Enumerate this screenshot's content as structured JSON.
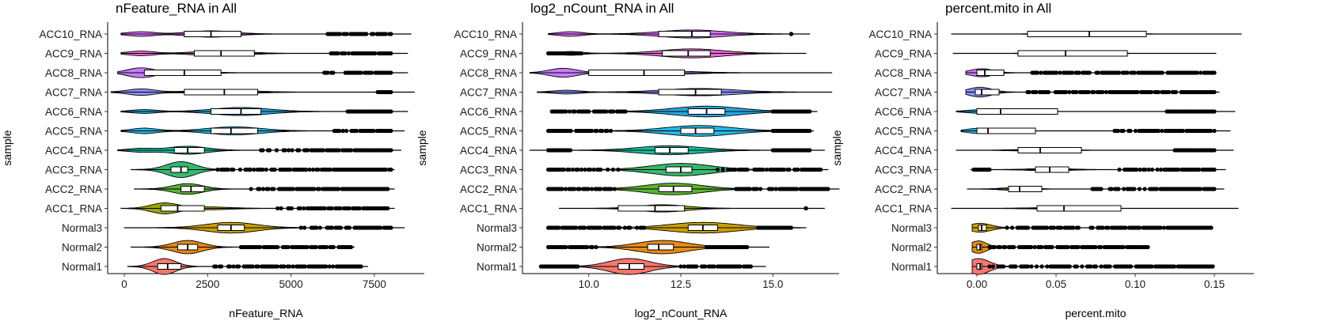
{
  "chart_data": [
    {
      "type": "violin",
      "orientation": "horizontal",
      "title": "nFeature_RNA in All",
      "xlabel": "nFeature_RNA",
      "ylabel": "sample",
      "xlim": [
        -500,
        9000
      ],
      "xticks": [
        0,
        2500,
        5000,
        7500
      ],
      "xtick_labels": [
        "0",
        "2500",
        "5000",
        "7500"
      ],
      "categories": [
        "ACC10_RNA",
        "ACC9_RNA",
        "ACC8_RNA",
        "ACC7_RNA",
        "ACC6_RNA",
        "ACC5_RNA",
        "ACC4_RNA",
        "ACC3_RNA",
        "ACC2_RNA",
        "ACC1_RNA",
        "Normal3",
        "Normal2",
        "Normal1"
      ],
      "series": [
        {
          "category": "ACC10_RNA",
          "min": -100,
          "max": 8600,
          "q1": 1800,
          "median": 2600,
          "q3": 3500,
          "wlo": -100,
          "whi": 6100,
          "outliers": [
            6100,
            8000
          ],
          "peaks": [
            [
              500,
              0.25
            ],
            [
              2600,
              0.35
            ]
          ]
        },
        {
          "category": "ACC9_RNA",
          "min": -100,
          "max": 8500,
          "q1": 2100,
          "median": 2900,
          "q3": 3900,
          "wlo": -100,
          "whi": 6200,
          "outliers": [
            6200,
            8000
          ],
          "peaks": [
            [
              500,
              0.25
            ],
            [
              2900,
              0.3
            ]
          ]
        },
        {
          "category": "ACC8_RNA",
          "min": -200,
          "max": 8500,
          "q1": 600,
          "median": 1800,
          "q3": 2900,
          "wlo": -200,
          "whi": 6000,
          "outliers": [
            6000,
            8000
          ],
          "peaks": [
            [
              500,
              0.55
            ],
            [
              2000,
              0.12
            ]
          ]
        },
        {
          "category": "ACC7_RNA",
          "min": -400,
          "max": 8700,
          "q1": 1800,
          "median": 3000,
          "q3": 4000,
          "wlo": -400,
          "whi": 7600,
          "outliers": [
            7600,
            8000
          ],
          "peaks": [
            [
              500,
              0.35
            ],
            [
              3000,
              0.25
            ]
          ]
        },
        {
          "category": "ACC6_RNA",
          "min": -100,
          "max": 8500,
          "q1": 2600,
          "median": 3500,
          "q3": 4100,
          "wlo": -100,
          "whi": 6700,
          "outliers": [
            6700,
            8000
          ],
          "peaks": [
            [
              600,
              0.2
            ],
            [
              3500,
              0.45
            ]
          ]
        },
        {
          "category": "ACC5_RNA",
          "min": -100,
          "max": 8400,
          "q1": 2600,
          "median": 3200,
          "q3": 4000,
          "wlo": -100,
          "whi": 6300,
          "outliers": [
            6300,
            8000
          ],
          "peaks": [
            [
              600,
              0.3
            ],
            [
              3300,
              0.45
            ]
          ]
        },
        {
          "category": "ACC4_RNA",
          "min": -200,
          "max": 8300,
          "q1": 1500,
          "median": 1900,
          "q3": 2400,
          "wlo": -200,
          "whi": 4100,
          "outliers": [
            4100,
            8000
          ],
          "peaks": [
            [
              500,
              0.2
            ],
            [
              1900,
              0.45
            ]
          ]
        },
        {
          "category": "ACC3_RNA",
          "min": 200,
          "max": 8100,
          "q1": 1400,
          "median": 1700,
          "q3": 1900,
          "wlo": 200,
          "whi": 2800,
          "outliers": [
            2800,
            8000
          ],
          "peaks": [
            [
              1700,
              0.9
            ]
          ]
        },
        {
          "category": "ACC2_RNA",
          "min": 300,
          "max": 8100,
          "q1": 1700,
          "median": 2000,
          "q3": 2400,
          "wlo": 300,
          "whi": 3800,
          "outliers": [
            3800,
            7900
          ],
          "peaks": [
            [
              1900,
              0.6
            ]
          ]
        },
        {
          "category": "ACC1_RNA",
          "min": -100,
          "max": 8100,
          "q1": 1100,
          "median": 1600,
          "q3": 2400,
          "wlo": -100,
          "whi": 4600,
          "outliers": [
            4600,
            7900
          ],
          "peaks": [
            [
              1200,
              0.6
            ],
            [
              2500,
              0.15
            ]
          ]
        },
        {
          "category": "Normal3",
          "min": 0,
          "max": 8400,
          "q1": 2800,
          "median": 3200,
          "q3": 3600,
          "wlo": 0,
          "whi": 5300,
          "outliers": [
            5300,
            8000
          ],
          "peaks": [
            [
              3200,
              0.6
            ]
          ]
        },
        {
          "category": "Normal2",
          "min": 200,
          "max": 6900,
          "q1": 1600,
          "median": 1900,
          "q3": 2200,
          "wlo": 200,
          "whi": 3500,
          "outliers": [
            3500,
            6800
          ],
          "peaks": [
            [
              1900,
              0.75
            ]
          ]
        },
        {
          "category": "Normal1",
          "min": 100,
          "max": 7300,
          "q1": 1000,
          "median": 1300,
          "q3": 1700,
          "wlo": 100,
          "whi": 2700,
          "outliers": [
            2700,
            7100
          ],
          "peaks": [
            [
              1200,
              0.9
            ]
          ]
        }
      ]
    },
    {
      "type": "violin",
      "orientation": "horizontal",
      "title": "log2_nCount_RNA in All",
      "xlabel": "log2_nCount_RNA",
      "ylabel": "sample",
      "xlim": [
        8.2,
        16.8
      ],
      "xticks": [
        10.0,
        12.5,
        15.0
      ],
      "xtick_labels": [
        "10.0",
        "12.5",
        "15.0"
      ],
      "categories": [
        "ACC10_RNA",
        "ACC9_RNA",
        "ACC8_RNA",
        "ACC7_RNA",
        "ACC6_RNA",
        "ACC5_RNA",
        "ACC4_RNA",
        "ACC3_RNA",
        "ACC2_RNA",
        "ACC1_RNA",
        "Normal3",
        "Normal2",
        "Normal1"
      ],
      "series": [
        {
          "category": "ACC10_RNA",
          "min": 8.9,
          "max": 16.0,
          "q1": 11.9,
          "median": 12.8,
          "q3": 13.3,
          "wlo": 8.9,
          "whi": 15.5,
          "outliers": [
            15.5,
            15.5
          ],
          "peaks": [
            [
              9.5,
              0.25
            ],
            [
              12.8,
              0.45
            ]
          ]
        },
        {
          "category": "ACC9_RNA",
          "min": 8.9,
          "max": 15.9,
          "q1": 12.0,
          "median": 12.7,
          "q3": 13.3,
          "wlo": 9.8,
          "whi": 15.9,
          "outliers": [
            8.9,
            9.8
          ],
          "peaks": [
            [
              9.5,
              0.2
            ],
            [
              12.8,
              0.5
            ]
          ]
        },
        {
          "category": "ACC8_RNA",
          "min": 8.4,
          "max": 16.6,
          "q1": 10.0,
          "median": 11.5,
          "q3": 12.6,
          "wlo": 8.4,
          "whi": 16.6,
          "outliers": [],
          "peaks": [
            [
              9.3,
              0.5
            ],
            [
              12.0,
              0.2
            ]
          ]
        },
        {
          "category": "ACC7_RNA",
          "min": 8.6,
          "max": 16.6,
          "q1": 11.9,
          "median": 12.9,
          "q3": 13.6,
          "wlo": 8.6,
          "whi": 16.6,
          "outliers": [],
          "peaks": [
            [
              9.4,
              0.2
            ],
            [
              13.0,
              0.4
            ]
          ]
        },
        {
          "category": "ACC6_RNA",
          "min": 9.0,
          "max": 16.2,
          "q1": 12.7,
          "median": 13.2,
          "q3": 13.7,
          "wlo": 11.0,
          "whi": 15.0,
          "outliers": [
            9.0,
            11.0,
            15.0,
            16.0
          ],
          "peaks": [
            [
              13.2,
              0.6
            ]
          ]
        },
        {
          "category": "ACC5_RNA",
          "min": 8.9,
          "max": 16.1,
          "q1": 12.5,
          "median": 12.9,
          "q3": 13.4,
          "wlo": 10.6,
          "whi": 15.0,
          "outliers": [
            8.9,
            10.6,
            15.0,
            16.0
          ],
          "peaks": [
            [
              13.0,
              0.6
            ]
          ]
        },
        {
          "category": "ACC4_RNA",
          "min": 8.4,
          "max": 16.4,
          "q1": 11.8,
          "median": 12.2,
          "q3": 12.7,
          "wlo": 9.5,
          "whi": 15.0,
          "outliers": [
            8.9,
            9.5,
            15.0,
            16.0
          ],
          "peaks": [
            [
              12.2,
              0.5
            ]
          ]
        },
        {
          "category": "ACC3_RNA",
          "min": 8.9,
          "max": 16.5,
          "q1": 12.1,
          "median": 12.5,
          "q3": 12.8,
          "wlo": 10.8,
          "whi": 13.5,
          "outliers": [
            8.9,
            10.8,
            13.5,
            16.3
          ],
          "peaks": [
            [
              12.5,
              0.7
            ]
          ]
        },
        {
          "category": "ACC2_RNA",
          "min": 8.9,
          "max": 16.8,
          "q1": 11.9,
          "median": 12.3,
          "q3": 12.8,
          "wlo": 10.7,
          "whi": 14.0,
          "outliers": [
            8.9,
            10.7,
            14.0,
            16.5
          ],
          "peaks": [
            [
              12.3,
              0.65
            ]
          ]
        },
        {
          "category": "ACC1_RNA",
          "min": 9.2,
          "max": 16.4,
          "q1": 10.8,
          "median": 11.8,
          "q3": 12.6,
          "wlo": 9.2,
          "whi": 15.0,
          "outliers": [
            15.9,
            15.9
          ],
          "peaks": [
            [
              12.0,
              0.4
            ]
          ]
        },
        {
          "category": "Normal3",
          "min": 8.9,
          "max": 15.9,
          "q1": 12.7,
          "median": 13.1,
          "q3": 13.5,
          "wlo": 11.5,
          "whi": 14.6,
          "outliers": [
            8.9,
            11.5,
            14.6,
            15.5
          ],
          "peaks": [
            [
              13.1,
              0.6
            ]
          ]
        },
        {
          "category": "Normal2",
          "min": 8.9,
          "max": 14.9,
          "q1": 11.6,
          "median": 11.9,
          "q3": 12.3,
          "wlo": 10.2,
          "whi": 13.2,
          "outliers": [
            8.9,
            10.2,
            13.2,
            14.3
          ],
          "peaks": [
            [
              12.0,
              0.75
            ]
          ]
        },
        {
          "category": "Normal1",
          "min": 8.7,
          "max": 14.8,
          "q1": 10.8,
          "median": 11.1,
          "q3": 11.5,
          "wlo": 9.7,
          "whi": 12.5,
          "outliers": [
            8.7,
            9.7,
            12.5,
            14.4
          ],
          "peaks": [
            [
              11.1,
              0.9
            ]
          ]
        }
      ]
    },
    {
      "type": "violin",
      "orientation": "horizontal",
      "title": "percent.mito in All",
      "xlabel": "percent.mito",
      "ylabel": "sample",
      "xlim": [
        -0.025,
        0.175
      ],
      "xticks": [
        0.0,
        0.05,
        0.1,
        0.15
      ],
      "xtick_labels": [
        "0.00",
        "0.05",
        "0.10",
        "0.15"
      ],
      "categories": [
        "ACC10_RNA",
        "ACC9_RNA",
        "ACC8_RNA",
        "ACC7_RNA",
        "ACC6_RNA",
        "ACC5_RNA",
        "ACC4_RNA",
        "ACC3_RNA",
        "ACC2_RNA",
        "ACC1_RNA",
        "Normal3",
        "Normal2",
        "Normal1"
      ],
      "series": [
        {
          "category": "ACC10_RNA",
          "min": -0.016,
          "max": 0.167,
          "q1": 0.032,
          "median": 0.071,
          "q3": 0.107,
          "wlo": -0.016,
          "whi": 0.167,
          "outliers": [],
          "peaks": [
            [
              0.07,
              0.08
            ]
          ]
        },
        {
          "category": "ACC9_RNA",
          "min": -0.015,
          "max": 0.151,
          "q1": 0.026,
          "median": 0.056,
          "q3": 0.095,
          "wlo": -0.015,
          "whi": 0.151,
          "outliers": [],
          "peaks": [
            [
              0.06,
              0.08
            ]
          ]
        },
        {
          "category": "ACC8_RNA",
          "min": -0.007,
          "max": 0.15,
          "q1": 0.0,
          "median": 0.005,
          "q3": 0.017,
          "wlo": -0.007,
          "whi": 0.035,
          "outliers": [
            0.035,
            0.15
          ],
          "peaks": [
            [
              0.003,
              0.45
            ]
          ]
        },
        {
          "category": "ACC7_RNA",
          "min": -0.007,
          "max": 0.153,
          "q1": -0.001,
          "median": 0.003,
          "q3": 0.014,
          "wlo": -0.007,
          "whi": 0.032,
          "outliers": [
            0.032,
            0.15
          ],
          "peaks": [
            [
              0.002,
              0.55
            ]
          ]
        },
        {
          "category": "ACC6_RNA",
          "min": -0.013,
          "max": 0.163,
          "q1": 0.0,
          "median": 0.015,
          "q3": 0.051,
          "wlo": -0.013,
          "whi": 0.12,
          "outliers": [
            0.12,
            0.15
          ],
          "peaks": [
            [
              0.002,
              0.2
            ]
          ]
        },
        {
          "category": "ACC5_RNA",
          "min": -0.01,
          "max": 0.16,
          "q1": 0.0,
          "median": 0.007,
          "q3": 0.037,
          "wlo": -0.01,
          "whi": 0.087,
          "outliers": [
            0.087,
            0.15
          ],
          "peaks": [
            [
              0.002,
              0.3
            ]
          ]
        },
        {
          "category": "ACC4_RNA",
          "min": -0.013,
          "max": 0.162,
          "q1": 0.026,
          "median": 0.04,
          "q3": 0.066,
          "wlo": -0.013,
          "whi": 0.125,
          "outliers": [
            0.125,
            0.15
          ],
          "peaks": [
            [
              0.04,
              0.12
            ]
          ]
        },
        {
          "category": "ACC3_RNA",
          "min": -0.004,
          "max": 0.157,
          "q1": 0.037,
          "median": 0.046,
          "q3": 0.058,
          "wlo": 0.008,
          "whi": 0.09,
          "outliers": [
            -0.002,
            0.008,
            0.09,
            0.15
          ],
          "peaks": [
            [
              0.046,
              0.12
            ]
          ]
        },
        {
          "category": "ACC2_RNA",
          "min": -0.006,
          "max": 0.156,
          "q1": 0.02,
          "median": 0.027,
          "q3": 0.041,
          "wlo": -0.006,
          "whi": 0.073,
          "outliers": [
            0.073,
            0.15
          ],
          "peaks": [
            [
              0.025,
              0.15
            ]
          ]
        },
        {
          "category": "ACC1_RNA",
          "min": -0.016,
          "max": 0.165,
          "q1": 0.038,
          "median": 0.055,
          "q3": 0.091,
          "wlo": -0.016,
          "whi": 0.165,
          "outliers": [],
          "peaks": [
            [
              0.05,
              0.08
            ]
          ]
        },
        {
          "category": "Normal3",
          "min": -0.003,
          "max": 0.148,
          "q1": 0.001,
          "median": 0.003,
          "q3": 0.006,
          "wlo": -0.003,
          "whi": 0.019,
          "outliers": [
            0.019,
            0.148
          ],
          "peaks": [
            [
              0.002,
              0.5
            ]
          ]
        },
        {
          "category": "Normal2",
          "min": -0.003,
          "max": 0.108,
          "q1": 0.0,
          "median": 0.002,
          "q3": 0.003,
          "wlo": -0.003,
          "whi": 0.008,
          "outliers": [
            0.008,
            0.108
          ],
          "peaks": [
            [
              0.001,
              0.7
            ]
          ]
        },
        {
          "category": "Normal1",
          "min": -0.003,
          "max": 0.149,
          "q1": 0.0,
          "median": 0.002,
          "q3": 0.003,
          "wlo": -0.003,
          "whi": 0.008,
          "outliers": [
            0.008,
            0.149
          ],
          "peaks": [
            [
              0.001,
              0.9
            ]
          ]
        }
      ]
    }
  ],
  "colors": [
    "#DC71FA",
    "#E867D3",
    "#C77CFF",
    "#8E90FA",
    "#24A7DE",
    "#26B8E4",
    "#14BE9F",
    "#34BA6E",
    "#5DB52F",
    "#9AA600",
    "#C9A000",
    "#E58A16",
    "#F8766D"
  ]
}
